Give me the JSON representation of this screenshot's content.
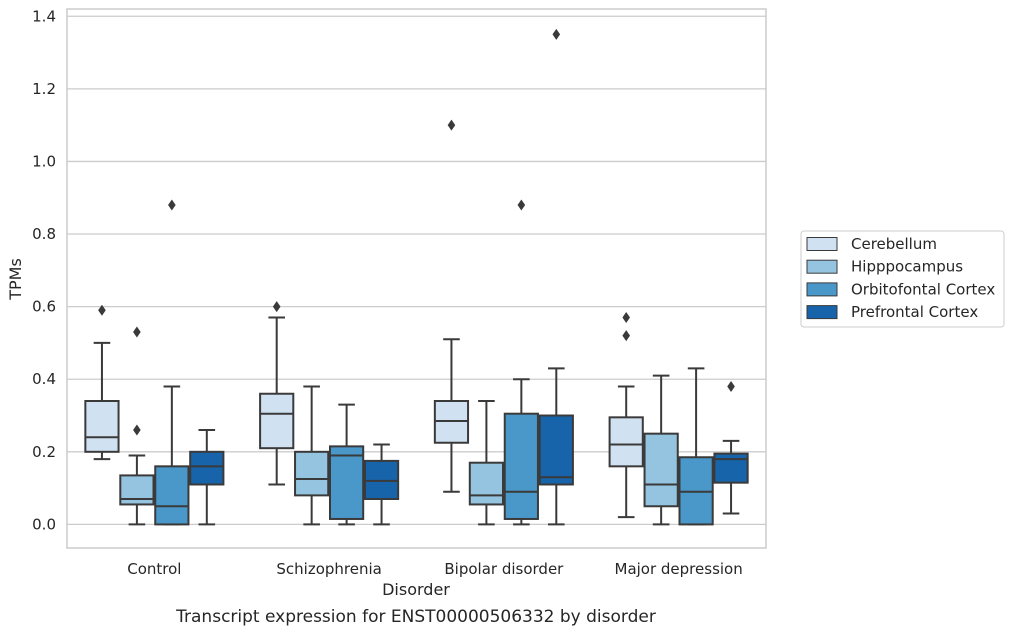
{
  "chart_data": {
    "type": "box",
    "caption": "Transcript expression for ENST00000506332 by disorder",
    "xlabel": "Disorder",
    "ylabel": "TPMs",
    "ylim": [
      -0.065,
      1.42
    ],
    "yticks": [
      "0.0",
      "0.2",
      "0.4",
      "0.6",
      "0.8",
      "1.0",
      "1.2",
      "1.4"
    ],
    "grid": "horizontal",
    "legend_position": "right",
    "categories": [
      "Control",
      "Schizophrenia",
      "Bipolar disorder",
      "Major depression"
    ],
    "series": [
      {
        "name": "Cerebellum",
        "color": "#d0e1f2",
        "boxes": [
          {
            "whisker_low": 0.18,
            "q1": 0.2,
            "median": 0.24,
            "q3": 0.34,
            "whisker_high": 0.5,
            "outliers": [
              0.59
            ]
          },
          {
            "whisker_low": 0.11,
            "q1": 0.21,
            "median": 0.305,
            "q3": 0.36,
            "whisker_high": 0.57,
            "outliers": [
              0.6
            ]
          },
          {
            "whisker_low": 0.09,
            "q1": 0.225,
            "median": 0.285,
            "q3": 0.34,
            "whisker_high": 0.51,
            "outliers": [
              1.1
            ]
          },
          {
            "whisker_low": 0.02,
            "q1": 0.16,
            "median": 0.22,
            "q3": 0.295,
            "whisker_high": 0.38,
            "outliers": [
              0.52,
              0.57
            ]
          }
        ]
      },
      {
        "name": "Hipppocampus",
        "color": "#94c4df",
        "boxes": [
          {
            "whisker_low": 0.0,
            "q1": 0.055,
            "median": 0.07,
            "q3": 0.135,
            "whisker_high": 0.19,
            "outliers": [
              0.26,
              0.53
            ]
          },
          {
            "whisker_low": 0.0,
            "q1": 0.08,
            "median": 0.125,
            "q3": 0.2,
            "whisker_high": 0.38,
            "outliers": []
          },
          {
            "whisker_low": 0.0,
            "q1": 0.055,
            "median": 0.08,
            "q3": 0.17,
            "whisker_high": 0.34,
            "outliers": []
          },
          {
            "whisker_low": 0.0,
            "q1": 0.05,
            "median": 0.11,
            "q3": 0.25,
            "whisker_high": 0.41,
            "outliers": []
          }
        ]
      },
      {
        "name": "Orbitofontal Cortex",
        "color": "#4a98c9",
        "boxes": [
          {
            "whisker_low": 0.0,
            "q1": 0.0,
            "median": 0.05,
            "q3": 0.16,
            "whisker_high": 0.38,
            "outliers": [
              0.88
            ]
          },
          {
            "whisker_low": 0.0,
            "q1": 0.015,
            "median": 0.19,
            "q3": 0.215,
            "whisker_high": 0.33,
            "outliers": []
          },
          {
            "whisker_low": 0.0,
            "q1": 0.015,
            "median": 0.09,
            "q3": 0.305,
            "whisker_high": 0.4,
            "outliers": [
              0.88
            ]
          },
          {
            "whisker_low": 0.0,
            "q1": 0.0,
            "median": 0.09,
            "q3": 0.185,
            "whisker_high": 0.43,
            "outliers": []
          }
        ]
      },
      {
        "name": "Prefrontal Cortex",
        "color": "#1764ab",
        "boxes": [
          {
            "whisker_low": 0.0,
            "q1": 0.11,
            "median": 0.16,
            "q3": 0.2,
            "whisker_high": 0.26,
            "outliers": []
          },
          {
            "whisker_low": 0.0,
            "q1": 0.07,
            "median": 0.12,
            "q3": 0.175,
            "whisker_high": 0.22,
            "outliers": []
          },
          {
            "whisker_low": 0.0,
            "q1": 0.11,
            "median": 0.13,
            "q3": 0.3,
            "whisker_high": 0.43,
            "outliers": [
              1.35
            ]
          },
          {
            "whisker_low": 0.03,
            "q1": 0.115,
            "median": 0.18,
            "q3": 0.195,
            "whisker_high": 0.23,
            "outliers": [
              0.38
            ]
          }
        ]
      }
    ],
    "colors": {
      "grid": "#cccccc",
      "frame": "#cccccc",
      "box_edge": "#3a3a3a"
    }
  }
}
